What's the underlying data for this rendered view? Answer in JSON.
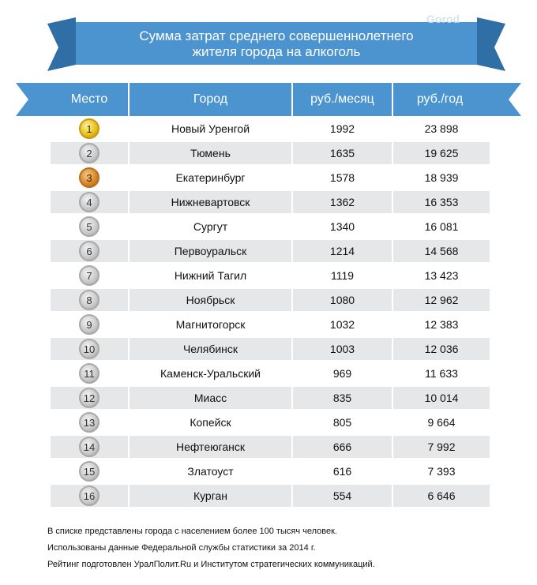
{
  "title": {
    "line1": "Сумма затрат среднего совершеннолетнего",
    "line2": "жителя города на алкоголь"
  },
  "watermark": "Gorod",
  "headers": {
    "rank": "Место",
    "city": "Город",
    "month": "руб./месяц",
    "year": "руб./год"
  },
  "colors": {
    "ribbon": "#4b94cf",
    "row_alt": "#e6e7e9"
  },
  "rows": [
    {
      "rank": "1",
      "city": "Новый Уренгой",
      "month": "1992",
      "year": "23 898",
      "medal": "gold"
    },
    {
      "rank": "2",
      "city": "Тюмень",
      "month": "1635",
      "year": "19 625",
      "medal": "silver"
    },
    {
      "rank": "3",
      "city": "Екатеринбург",
      "month": "1578",
      "year": "18 939",
      "medal": "bronze"
    },
    {
      "rank": "4",
      "city": "Нижневартовск",
      "month": "1362",
      "year": "16 353",
      "medal": "silver"
    },
    {
      "rank": "5",
      "city": "Сургут",
      "month": "1340",
      "year": "16 081",
      "medal": "silver"
    },
    {
      "rank": "6",
      "city": "Первоуральск",
      "month": "1214",
      "year": "14 568",
      "medal": "silver"
    },
    {
      "rank": "7",
      "city": "Нижний Тагил",
      "month": "1119",
      "year": "13 423",
      "medal": "silver"
    },
    {
      "rank": "8",
      "city": "Ноябрьск",
      "month": "1080",
      "year": "12 962",
      "medal": "silver"
    },
    {
      "rank": "9",
      "city": "Магнитогорск",
      "month": "1032",
      "year": "12 383",
      "medal": "silver"
    },
    {
      "rank": "10",
      "city": "Челябинск",
      "month": "1003",
      "year": "12 036",
      "medal": "silver"
    },
    {
      "rank": "11",
      "city": "Каменск-Уральский",
      "month": "969",
      "year": "11 633",
      "medal": "silver"
    },
    {
      "rank": "12",
      "city": "Миасс",
      "month": "835",
      "year": "10 014",
      "medal": "silver"
    },
    {
      "rank": "13",
      "city": "Копейск",
      "month": "805",
      "year": "9 664",
      "medal": "silver"
    },
    {
      "rank": "14",
      "city": "Нефтеюганск",
      "month": "666",
      "year": "7 992",
      "medal": "silver"
    },
    {
      "rank": "15",
      "city": "Златоуст",
      "month": "616",
      "year": "7 393",
      "medal": "silver"
    },
    {
      "rank": "16",
      "city": "Курган",
      "month": "554",
      "year": "6 646",
      "medal": "silver"
    }
  ],
  "footnotes": [
    "В списке представлены города с населением более 100 тысяч человек.",
    "Использованы данные Федеральной службы статистики за 2014 г.",
    "Рейтинг подготовлен УралПолит.Ru и Институтом стратегических коммуникаций."
  ]
}
